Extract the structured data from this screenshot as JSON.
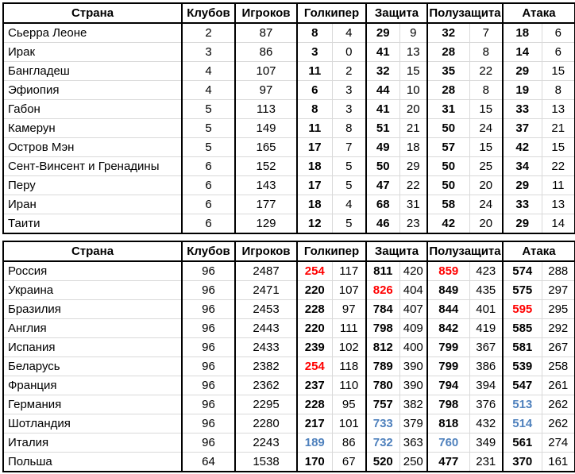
{
  "columns": {
    "country": "Страна",
    "clubs": "Клубов",
    "players": "Игроков",
    "goalkeeper": "Голкипер",
    "defense": "Защита",
    "midfield": "Полузащита",
    "attack": "Атака"
  },
  "colors": {
    "highlight_max": "#ff0000",
    "highlight_min": "#4f81bd",
    "gridline": "#d9d9d9",
    "border": "#000000"
  },
  "table1": {
    "rows": [
      {
        "country": "Сьерра Леоне",
        "clubs": "2",
        "players": "87",
        "stats": [
          {
            "main": "8",
            "sub": "4"
          },
          {
            "main": "29",
            "sub": "9"
          },
          {
            "main": "32",
            "sub": "7"
          },
          {
            "main": "18",
            "sub": "6"
          }
        ]
      },
      {
        "country": "Ирак",
        "clubs": "3",
        "players": "86",
        "stats": [
          {
            "main": "3",
            "sub": "0"
          },
          {
            "main": "41",
            "sub": "13"
          },
          {
            "main": "28",
            "sub": "8"
          },
          {
            "main": "14",
            "sub": "6"
          }
        ]
      },
      {
        "country": "Бангладеш",
        "clubs": "4",
        "players": "107",
        "stats": [
          {
            "main": "11",
            "sub": "2"
          },
          {
            "main": "32",
            "sub": "15"
          },
          {
            "main": "35",
            "sub": "22"
          },
          {
            "main": "29",
            "sub": "15"
          }
        ]
      },
      {
        "country": "Эфиопия",
        "clubs": "4",
        "players": "97",
        "stats": [
          {
            "main": "6",
            "sub": "3"
          },
          {
            "main": "44",
            "sub": "10"
          },
          {
            "main": "28",
            "sub": "8"
          },
          {
            "main": "19",
            "sub": "8"
          }
        ]
      },
      {
        "country": "Габон",
        "clubs": "5",
        "players": "113",
        "stats": [
          {
            "main": "8",
            "sub": "3"
          },
          {
            "main": "41",
            "sub": "20"
          },
          {
            "main": "31",
            "sub": "15"
          },
          {
            "main": "33",
            "sub": "13"
          }
        ]
      },
      {
        "country": "Камерун",
        "clubs": "5",
        "players": "149",
        "stats": [
          {
            "main": "11",
            "sub": "8"
          },
          {
            "main": "51",
            "sub": "21"
          },
          {
            "main": "50",
            "sub": "24"
          },
          {
            "main": "37",
            "sub": "21"
          }
        ]
      },
      {
        "country": "Остров Мэн",
        "clubs": "5",
        "players": "165",
        "stats": [
          {
            "main": "17",
            "sub": "7"
          },
          {
            "main": "49",
            "sub": "18"
          },
          {
            "main": "57",
            "sub": "15"
          },
          {
            "main": "42",
            "sub": "15"
          }
        ]
      },
      {
        "country": "Сент-Винсент и Гренадины",
        "clubs": "6",
        "players": "152",
        "stats": [
          {
            "main": "18",
            "sub": "5"
          },
          {
            "main": "50",
            "sub": "29"
          },
          {
            "main": "50",
            "sub": "25"
          },
          {
            "main": "34",
            "sub": "22"
          }
        ]
      },
      {
        "country": "Перу",
        "clubs": "6",
        "players": "143",
        "stats": [
          {
            "main": "17",
            "sub": "5"
          },
          {
            "main": "47",
            "sub": "22"
          },
          {
            "main": "50",
            "sub": "20"
          },
          {
            "main": "29",
            "sub": "11"
          }
        ]
      },
      {
        "country": "Иран",
        "clubs": "6",
        "players": "177",
        "stats": [
          {
            "main": "18",
            "sub": "4"
          },
          {
            "main": "68",
            "sub": "31"
          },
          {
            "main": "58",
            "sub": "24"
          },
          {
            "main": "33",
            "sub": "13"
          }
        ]
      },
      {
        "country": "Таити",
        "clubs": "6",
        "players": "129",
        "stats": [
          {
            "main": "12",
            "sub": "5"
          },
          {
            "main": "46",
            "sub": "23"
          },
          {
            "main": "42",
            "sub": "20"
          },
          {
            "main": "29",
            "sub": "14"
          }
        ]
      }
    ]
  },
  "table2": {
    "rows": [
      {
        "country": "Россия",
        "clubs": "96",
        "players": "2487",
        "stats": [
          {
            "main": "254",
            "sub": "117",
            "color": "max"
          },
          {
            "main": "811",
            "sub": "420"
          },
          {
            "main": "859",
            "sub": "423",
            "color": "max"
          },
          {
            "main": "574",
            "sub": "288"
          }
        ]
      },
      {
        "country": "Украина",
        "clubs": "96",
        "players": "2471",
        "stats": [
          {
            "main": "220",
            "sub": "107"
          },
          {
            "main": "826",
            "sub": "404",
            "color": "max"
          },
          {
            "main": "849",
            "sub": "435"
          },
          {
            "main": "575",
            "sub": "297"
          }
        ]
      },
      {
        "country": "Бразилия",
        "clubs": "96",
        "players": "2453",
        "stats": [
          {
            "main": "228",
            "sub": "97"
          },
          {
            "main": "784",
            "sub": "407"
          },
          {
            "main": "844",
            "sub": "401"
          },
          {
            "main": "595",
            "sub": "295",
            "color": "max"
          }
        ]
      },
      {
        "country": "Англия",
        "clubs": "96",
        "players": "2443",
        "stats": [
          {
            "main": "220",
            "sub": "111"
          },
          {
            "main": "798",
            "sub": "409"
          },
          {
            "main": "842",
            "sub": "419"
          },
          {
            "main": "585",
            "sub": "292"
          }
        ]
      },
      {
        "country": "Испания",
        "clubs": "96",
        "players": "2433",
        "stats": [
          {
            "main": "239",
            "sub": "102"
          },
          {
            "main": "812",
            "sub": "400"
          },
          {
            "main": "799",
            "sub": "367"
          },
          {
            "main": "581",
            "sub": "267"
          }
        ]
      },
      {
        "country": "Беларусь",
        "clubs": "96",
        "players": "2382",
        "stats": [
          {
            "main": "254",
            "sub": "118",
            "color": "max"
          },
          {
            "main": "789",
            "sub": "390"
          },
          {
            "main": "799",
            "sub": "386"
          },
          {
            "main": "539",
            "sub": "258"
          }
        ]
      },
      {
        "country": "Франция",
        "clubs": "96",
        "players": "2362",
        "stats": [
          {
            "main": "237",
            "sub": "110"
          },
          {
            "main": "780",
            "sub": "390"
          },
          {
            "main": "794",
            "sub": "394"
          },
          {
            "main": "547",
            "sub": "261"
          }
        ]
      },
      {
        "country": "Германия",
        "clubs": "96",
        "players": "2295",
        "stats": [
          {
            "main": "228",
            "sub": "95"
          },
          {
            "main": "757",
            "sub": "382"
          },
          {
            "main": "798",
            "sub": "376"
          },
          {
            "main": "513",
            "sub": "262",
            "color": "min"
          }
        ]
      },
      {
        "country": "Шотландия",
        "clubs": "96",
        "players": "2280",
        "stats": [
          {
            "main": "217",
            "sub": "101"
          },
          {
            "main": "733",
            "sub": "379",
            "color": "min"
          },
          {
            "main": "818",
            "sub": "432"
          },
          {
            "main": "514",
            "sub": "262",
            "color": "min"
          }
        ]
      },
      {
        "country": "Италия",
        "clubs": "96",
        "players": "2243",
        "stats": [
          {
            "main": "189",
            "sub": "86",
            "color": "min"
          },
          {
            "main": "732",
            "sub": "363",
            "color": "min"
          },
          {
            "main": "760",
            "sub": "349",
            "color": "min"
          },
          {
            "main": "561",
            "sub": "274"
          }
        ]
      },
      {
        "country": "Польша",
        "clubs": "64",
        "players": "1538",
        "stats": [
          {
            "main": "170",
            "sub": "67"
          },
          {
            "main": "520",
            "sub": "250"
          },
          {
            "main": "477",
            "sub": "231"
          },
          {
            "main": "370",
            "sub": "161"
          }
        ]
      }
    ]
  }
}
